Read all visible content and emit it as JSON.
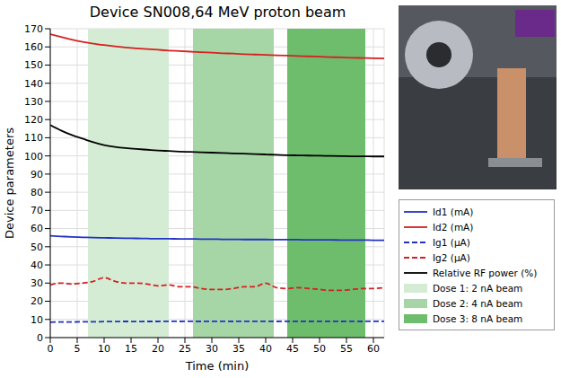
{
  "chart_data": {
    "type": "line",
    "title": "Device SN008,64 MeV proton beam",
    "x_label": "Time (min)",
    "y_label": "Device parameters",
    "x": [
      0,
      2,
      4,
      6,
      8,
      10,
      12,
      14,
      16,
      18,
      20,
      22,
      24,
      26,
      28,
      30,
      32,
      34,
      36,
      38,
      40,
      42,
      44,
      46,
      48,
      50,
      52,
      54,
      56,
      58,
      60,
      62
    ],
    "series": [
      {
        "name": "Id1 (mA)",
        "color": "#2233c4",
        "line_style": "solid",
        "values": [
          56,
          55.7,
          55.4,
          55.2,
          55,
          54.9,
          54.8,
          54.7,
          54.6,
          54.5,
          54.4,
          54.4,
          54.3,
          54.3,
          54.2,
          54.2,
          54.1,
          54.1,
          54,
          54,
          54,
          53.9,
          53.9,
          53.9,
          53.8,
          53.8,
          53.8,
          53.7,
          53.7,
          53.7,
          53.6,
          53.6
        ]
      },
      {
        "name": "Id2 (mA)",
        "color": "#d62020",
        "line_style": "solid",
        "values": [
          167,
          165.5,
          164,
          162.8,
          161.8,
          161,
          160.3,
          159.7,
          159.2,
          158.8,
          158.4,
          158,
          157.7,
          157.4,
          157.1,
          156.8,
          156.5,
          156.3,
          156,
          155.8,
          155.6,
          155.4,
          155.2,
          155,
          154.8,
          154.6,
          154.4,
          154.2,
          154,
          153.9,
          153.8,
          153.6
        ]
      },
      {
        "name": "Ig1 (μA)",
        "color": "#2233c4",
        "line_style": "dashed",
        "values": [
          8.5,
          8.6,
          8.6,
          8.7,
          8.7,
          8.8,
          8.8,
          8.9,
          8.8,
          8.9,
          8.9,
          9,
          8.9,
          9,
          8.9,
          9,
          9,
          8.9,
          9,
          9,
          9,
          8.9,
          9,
          9,
          8.9,
          9,
          9,
          8.9,
          9,
          8.9,
          9,
          9
        ]
      },
      {
        "name": "Ig2 (μA)",
        "color": "#d62020",
        "line_style": "dashed",
        "values": [
          29,
          30,
          29.5,
          30,
          31,
          33,
          31,
          30,
          30,
          29.5,
          28.5,
          29,
          28,
          28,
          27,
          26.5,
          26.5,
          27,
          28,
          28,
          30,
          27.5,
          27,
          27.5,
          27,
          26.5,
          26,
          26,
          26.5,
          27,
          27,
          27.5
        ]
      },
      {
        "name": "Relative RF power (%)",
        "color": "#000000",
        "line_style": "solid",
        "values": [
          117,
          114,
          111.5,
          109.5,
          107.5,
          106,
          105,
          104.3,
          103.8,
          103.4,
          103,
          102.7,
          102.4,
          102.2,
          102,
          101.8,
          101.6,
          101.4,
          101.2,
          101,
          100.8,
          100.6,
          100.4,
          100.3,
          100.2,
          100.1,
          100,
          99.9,
          99.8,
          99.8,
          99.7,
          99.7
        ]
      }
    ],
    "regions": [
      {
        "name": "Dose 1: 2 nA beam",
        "color": "#d3ecd3",
        "x": [
          7,
          22
        ]
      },
      {
        "name": "Dose 2: 4 nA beam",
        "color": "#a6d6a6",
        "x": [
          26.5,
          41.5
        ]
      },
      {
        "name": "Dose 3: 8 nA beam",
        "color": "#6dbd6d",
        "x": [
          44,
          58.5
        ]
      }
    ],
    "xlim": [
      0,
      62
    ],
    "xticks": [
      0,
      5,
      10,
      15,
      20,
      25,
      30,
      35,
      40,
      45,
      50,
      55,
      60
    ],
    "ylim": [
      0,
      170
    ],
    "yticks": [
      0,
      10,
      20,
      30,
      40,
      50,
      60,
      70,
      80,
      90,
      100,
      110,
      120,
      130,
      140,
      150,
      160,
      170
    ],
    "grid": true,
    "legend": "right"
  }
}
